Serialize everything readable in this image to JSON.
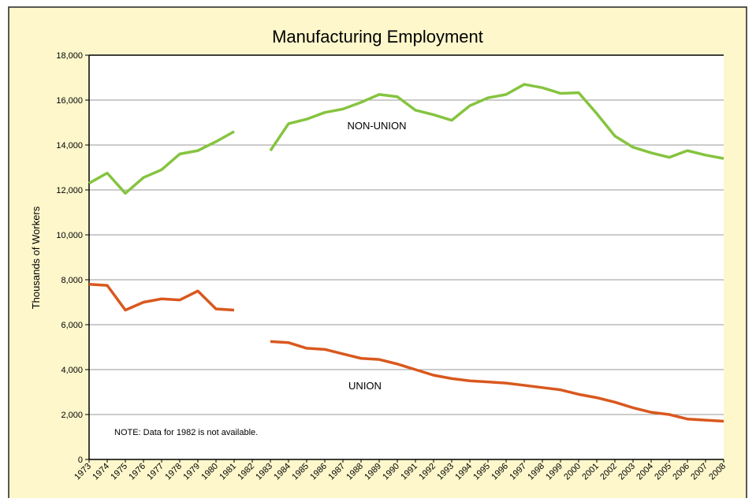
{
  "chart_data": {
    "type": "line",
    "title": "Manufacturing Employment",
    "ylabel": "Thousands of Workers",
    "annotations": [
      "NOTE: Data for 1982 is not available."
    ],
    "categories": [
      "1973",
      "1974",
      "1975",
      "1976",
      "1977",
      "1978",
      "1979",
      "1980",
      "1981",
      "1982",
      "1983",
      "1984",
      "1985",
      "1986",
      "1987",
      "1988",
      "1989",
      "1990",
      "1991",
      "1992",
      "1993",
      "1994",
      "1995",
      "1996",
      "1997",
      "1998",
      "1999",
      "2000",
      "2001",
      "2002",
      "2003",
      "2004",
      "2005",
      "2006",
      "2007",
      "2008"
    ],
    "series": [
      {
        "name": "NON-UNION",
        "color": "#86c440",
        "values": [
          12300,
          12750,
          11850,
          12550,
          12900,
          13600,
          13750,
          14150,
          14600,
          null,
          13750,
          14950,
          15150,
          15450,
          15600,
          15900,
          16250,
          16150,
          15550,
          15350,
          15100,
          15750,
          16100,
          16250,
          16700,
          16550,
          16300,
          16330,
          15400,
          14400,
          13900,
          13650,
          13450,
          13750,
          13550,
          13400
        ]
      },
      {
        "name": "UNION",
        "color": "#d9581e",
        "values": [
          7800,
          7750,
          6650,
          7000,
          7150,
          7100,
          7500,
          6700,
          6650,
          null,
          5250,
          5200,
          4950,
          4900,
          4700,
          4500,
          4450,
          4250,
          4000,
          3750,
          3600,
          3500,
          3450,
          3400,
          3300,
          3200,
          3100,
          2900,
          2750,
          2550,
          2300,
          2100,
          2000,
          1800,
          1750,
          1700
        ]
      }
    ],
    "ylim": [
      0,
      18000
    ],
    "yticks": [
      0,
      {
        "value": 2000,
        "label": "2,000"
      },
      {
        "value": 4000,
        "label": "4,000"
      },
      {
        "value": 6000,
        "label": "6,000"
      },
      {
        "value": 8000,
        "label": "8,000"
      },
      {
        "value": 10000,
        "label": "10,000"
      },
      {
        "value": 12000,
        "label": "12,000"
      },
      {
        "value": 14000,
        "label": "14,000"
      },
      {
        "value": 16000,
        "label": "16,000"
      },
      {
        "value": 18000,
        "label": "18,000"
      }
    ],
    "grid": true
  }
}
